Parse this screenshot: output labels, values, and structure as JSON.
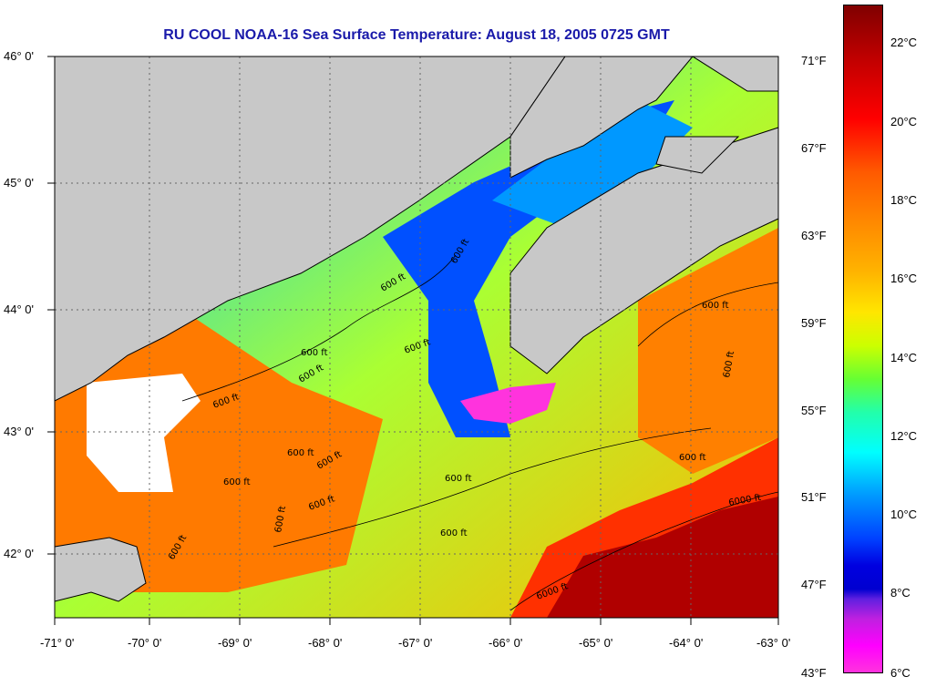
{
  "title": "RU COOL  NOAA-16  Sea Surface Temperature:  August 18, 2005 0725 GMT",
  "axes": {
    "x_labels": [
      "-71° 0'",
      "-70° 0'",
      "-69° 0'",
      "-68° 0'",
      "-67° 0'",
      "-66° 0'",
      "-65° 0'",
      "-64° 0'",
      "-63° 0'"
    ],
    "y_labels": [
      "46° 0'",
      "45° 0'",
      "44° 0'",
      "43° 0'",
      "42° 0'"
    ]
  },
  "contour_labels": [
    "600 ft",
    "600 ft",
    "600 ft",
    "600 ft",
    "600 ft",
    "600 ft",
    "600 ft",
    "600 ft",
    "600 ft",
    "600 ft",
    "600 ft",
    "600 ft",
    "600 ft",
    "600 ft",
    "6000 ft",
    "6000 ft"
  ],
  "colorbar": {
    "fahrenheit": [
      "71°F",
      "67°F",
      "63°F",
      "59°F",
      "55°F",
      "51°F",
      "47°F",
      "43°F"
    ],
    "celsius": [
      "22°C",
      "20°C",
      "18°C",
      "16°C",
      "14°C",
      "12°C",
      "10°C",
      "8°C",
      "6°C"
    ]
  },
  "colors": {
    "land": "#c8c8c8",
    "title": "#1a1aaa",
    "warm": "#ff5a00",
    "cool": "#0040ff"
  }
}
